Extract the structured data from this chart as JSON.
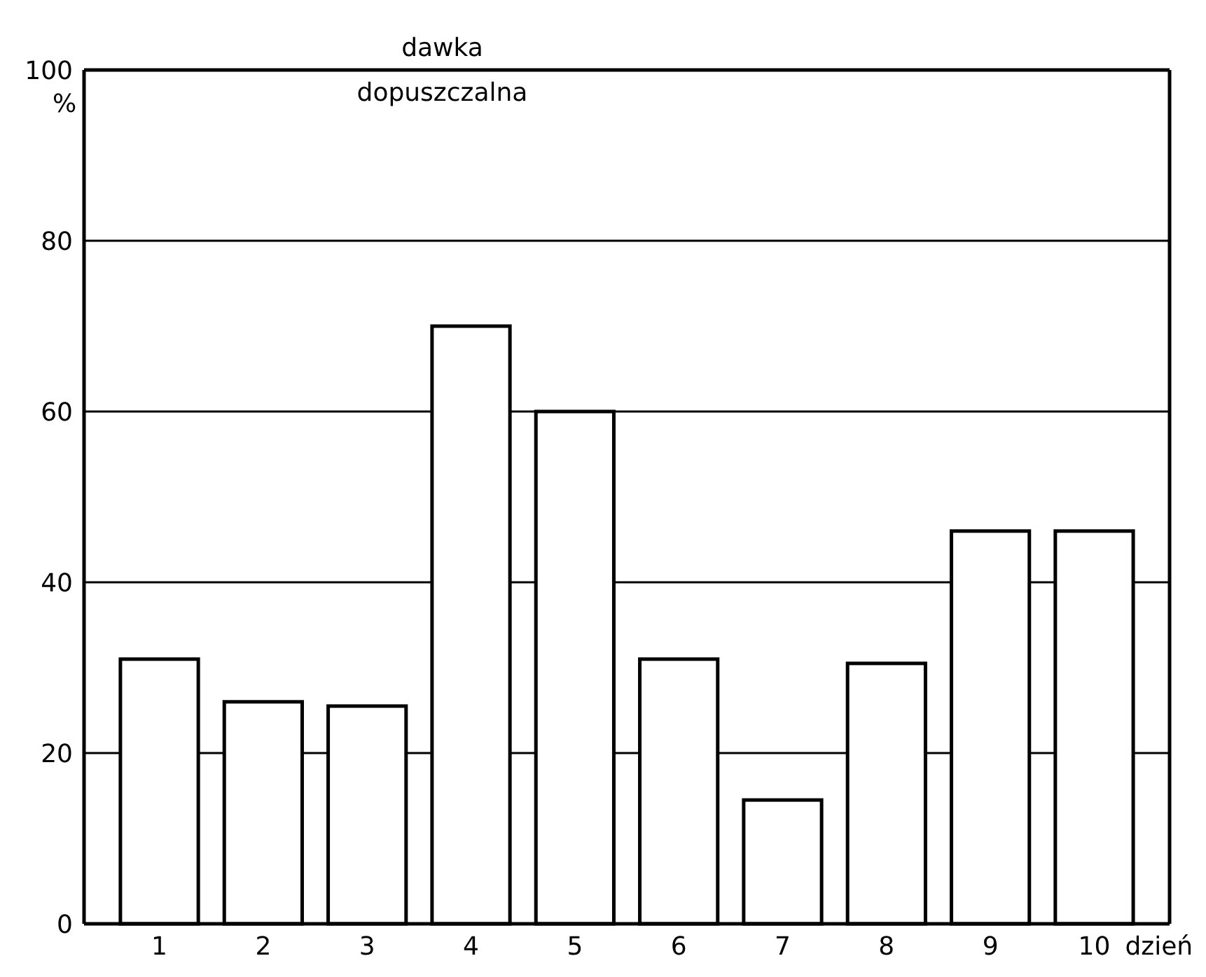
{
  "chart_data": {
    "type": "bar",
    "categories": [
      "1",
      "2",
      "3",
      "4",
      "5",
      "6",
      "7",
      "8",
      "9",
      "10"
    ],
    "values": [
      31,
      26,
      25.5,
      70,
      60,
      31,
      14.5,
      30.5,
      46,
      46
    ],
    "color": "#ffffff",
    "ylim": [
      0,
      100
    ],
    "yticks": [
      0,
      20,
      40,
      60,
      80,
      100
    ],
    "grid": "y",
    "xlabel": "dzień",
    "ylabel": "%",
    "ref_lines": [
      {
        "axis": "y",
        "value": 100,
        "label": "dawka dopuszczalna"
      }
    ]
  }
}
